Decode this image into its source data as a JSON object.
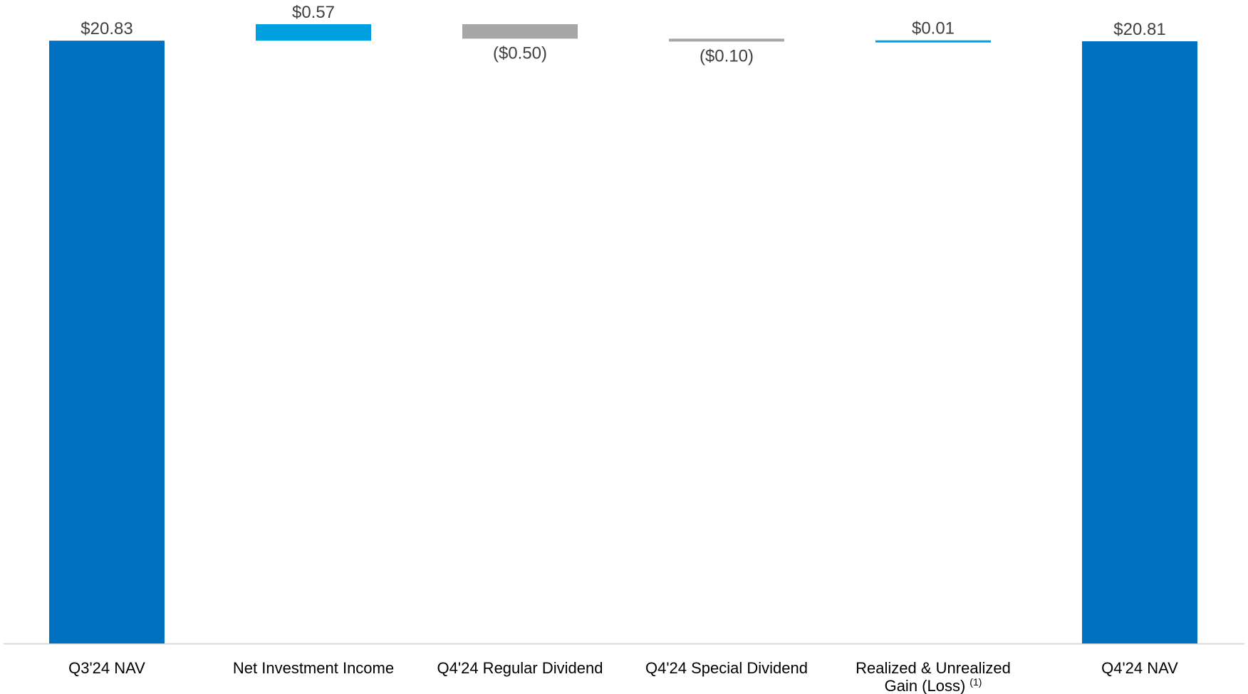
{
  "chart_data": {
    "type": "bar",
    "subtype": "waterfall",
    "title": "",
    "xlabel": "",
    "ylabel": "",
    "grid": false,
    "legend": "none",
    "categories": [
      "Q3'24 NAV",
      "Net Investment Income",
      "Q4'24 Regular Dividend",
      "Q4'24 Special Dividend",
      "Realized & Unrealized Gain (Loss)",
      "Q4'24 NAV"
    ],
    "category_lines": [
      [
        "Q3'24 NAV"
      ],
      [
        "Net Investment Income"
      ],
      [
        "Q4'24 Regular Dividend"
      ],
      [
        "Q4'24 Special Dividend"
      ],
      [
        "Realized & Unrealized",
        "Gain (Loss)"
      ],
      [
        "Q4'24 NAV"
      ]
    ],
    "footnote_marker": "(1)",
    "footnote_category_index": 4,
    "values": [
      20.83,
      0.57,
      -0.5,
      -0.1,
      0.01,
      20.81
    ],
    "bar_kind": [
      "total",
      "increase",
      "decrease",
      "decrease",
      "increase",
      "total"
    ],
    "value_labels": [
      "$20.83",
      "$0.57",
      "($0.50)",
      "($0.10)",
      "$0.01",
      "$20.81"
    ],
    "ylim": [
      0,
      21.4
    ],
    "colors": {
      "total": "#0070C0",
      "increase": "#00A0E0",
      "decrease": "#A6A6A6",
      "axis": "#D9D9D9"
    }
  }
}
